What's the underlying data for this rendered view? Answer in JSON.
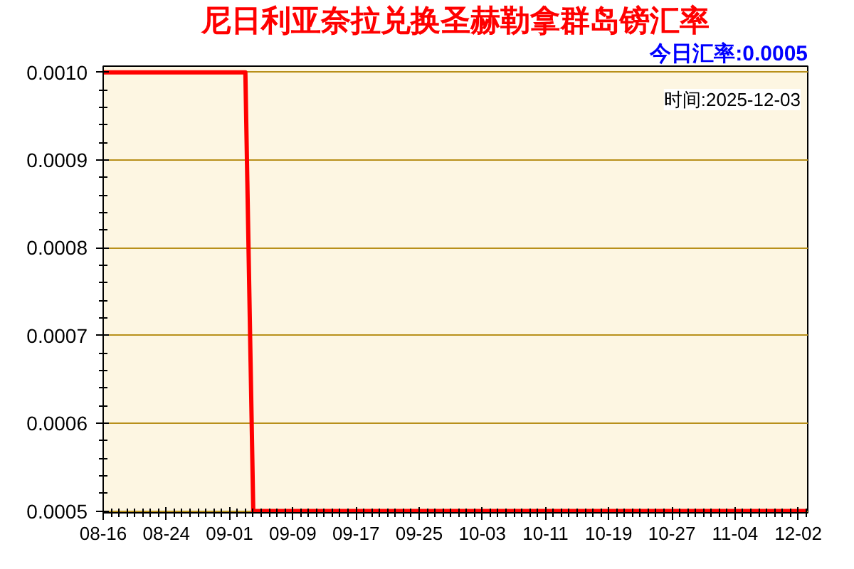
{
  "chart_data": {
    "type": "line",
    "title": "尼日利亚奈拉兑换圣赫勒拿群岛镑汇率",
    "subtitle": "今日汇率:0.0005",
    "annotations": [
      "时间:2025-12-03"
    ],
    "categories": [
      "08-16",
      null,
      null,
      null,
      null,
      null,
      null,
      null,
      "08-24",
      null,
      null,
      null,
      null,
      null,
      null,
      null,
      "09-01",
      null,
      null,
      null,
      null,
      null,
      null,
      null,
      "09-09",
      null,
      null,
      null,
      null,
      null,
      null,
      null,
      "09-17",
      null,
      null,
      null,
      null,
      null,
      null,
      null,
      "09-25",
      null,
      null,
      null,
      null,
      null,
      null,
      null,
      "10-03",
      null,
      null,
      null,
      null,
      null,
      null,
      null,
      "10-11",
      null,
      null,
      null,
      null,
      null,
      null,
      null,
      "10-19",
      null,
      null,
      null,
      null,
      null,
      null,
      null,
      "10-27",
      null,
      null,
      null,
      null,
      null,
      null,
      null,
      "11-04",
      null,
      null,
      null,
      null,
      null,
      null,
      null,
      "12-02",
      null
    ],
    "series": [
      {
        "color": "#ff0000",
        "values": [
          0.001,
          0.001,
          0.001,
          0.001,
          0.001,
          0.001,
          0.001,
          0.001,
          0.001,
          0.001,
          0.001,
          0.001,
          0.001,
          0.001,
          0.001,
          0.001,
          0.001,
          0.001,
          0.001,
          0.0005,
          0.0005,
          0.0005,
          0.0005,
          0.0005,
          0.0005,
          0.0005,
          0.0005,
          0.0005,
          0.0005,
          0.0005,
          0.0005,
          0.0005,
          0.0005,
          0.0005,
          0.0005,
          0.0005,
          0.0005,
          0.0005,
          0.0005,
          0.0005,
          0.0005,
          0.0005,
          0.0005,
          0.0005,
          0.0005,
          0.0005,
          0.0005,
          0.0005,
          0.0005,
          0.0005,
          0.0005,
          0.0005,
          0.0005,
          0.0005,
          0.0005,
          0.0005,
          0.0005,
          0.0005,
          0.0005,
          0.0005,
          0.0005,
          0.0005,
          0.0005,
          0.0005,
          0.0005,
          0.0005,
          0.0005,
          0.0005,
          0.0005,
          0.0005,
          0.0005,
          0.0005,
          0.0005,
          0.0005,
          0.0005,
          0.0005,
          0.0005,
          0.0005,
          0.0005,
          0.0005,
          0.0005,
          0.0005,
          0.0005,
          0.0005,
          0.0005,
          0.0005,
          0.0005,
          0.0005,
          0.0005,
          0.0005
        ]
      }
    ],
    "ylim": [
      0.000498,
      0.001007
    ],
    "yticks": [
      0.0005,
      0.0006,
      0.0007,
      0.0008,
      0.0009,
      {
        "value": 0.001,
        "label": "0.0010"
      }
    ],
    "grid": "y"
  }
}
